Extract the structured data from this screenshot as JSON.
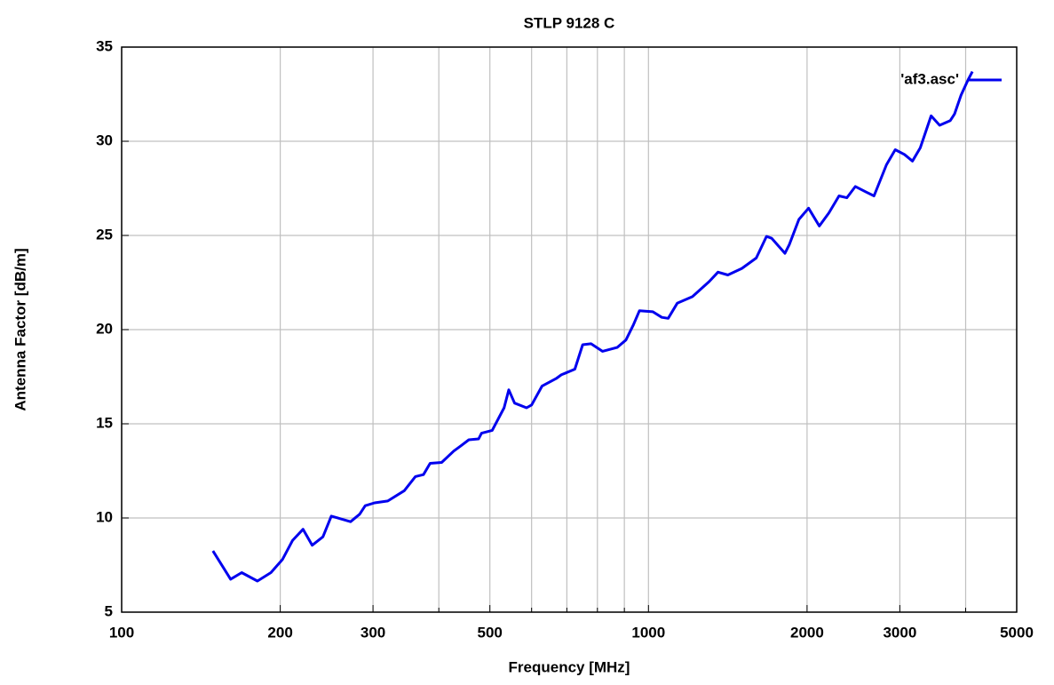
{
  "chart_data": {
    "type": "line",
    "title": "STLP 9128 C",
    "x_label": "Frequency [MHz]",
    "y_label": "Antenna Factor [dB/m]",
    "x_scale": "log",
    "grid": true,
    "legend": "upper right",
    "xlim": [
      100,
      5000
    ],
    "xticks": [
      100,
      200,
      300,
      500,
      1000,
      2000,
      3000,
      5000
    ],
    "x_minor_grid": [
      400,
      600,
      700,
      800,
      900,
      4000
    ],
    "ylim": [
      5,
      35
    ],
    "yticks": [
      5,
      10,
      15,
      20,
      25,
      30,
      35
    ],
    "x": [
      149,
      161,
      169,
      181,
      192,
      202,
      211,
      221,
      230,
      241,
      250,
      272,
      283,
      290,
      302,
      320,
      344,
      361,
      374,
      385,
      405,
      427,
      439,
      456,
      476,
      482,
      505,
      532,
      543,
      557,
      587,
      600,
      628,
      668,
      683,
      725,
      750,
      778,
      818,
      872,
      906,
      936,
      961,
      1019,
      1060,
      1090,
      1134,
      1212,
      1304,
      1355,
      1415,
      1504,
      1602,
      1675,
      1714,
      1816,
      1850,
      1930,
      2013,
      2110,
      2200,
      2300,
      2380,
      2470,
      2590,
      2680,
      2830,
      2940,
      3060,
      3170,
      3280,
      3440,
      3570,
      3740,
      3810,
      3920,
      4040,
      4120
    ],
    "series": [
      {
        "name": "'af3.asc'",
        "color": "#0000ee",
        "values": [
          8.25,
          6.75,
          7.1,
          6.65,
          7.1,
          7.8,
          8.8,
          9.4,
          8.55,
          9.0,
          10.1,
          9.8,
          10.2,
          10.65,
          10.8,
          10.9,
          11.45,
          12.2,
          12.3,
          12.9,
          12.95,
          13.55,
          13.8,
          14.15,
          14.2,
          14.5,
          14.65,
          15.85,
          16.8,
          16.1,
          15.85,
          16.0,
          17.0,
          17.4,
          17.6,
          17.9,
          19.2,
          19.25,
          18.85,
          19.05,
          19.45,
          20.25,
          21.0,
          20.95,
          20.65,
          20.6,
          21.4,
          21.75,
          22.55,
          23.05,
          22.9,
          23.25,
          23.8,
          24.95,
          24.85,
          24.05,
          24.5,
          25.85,
          26.45,
          25.5,
          26.2,
          27.1,
          27.0,
          27.6,
          27.3,
          27.1,
          28.75,
          29.55,
          29.3,
          28.95,
          29.65,
          31.35,
          30.85,
          31.1,
          31.45,
          32.45,
          33.25,
          33.7
        ]
      }
    ]
  }
}
